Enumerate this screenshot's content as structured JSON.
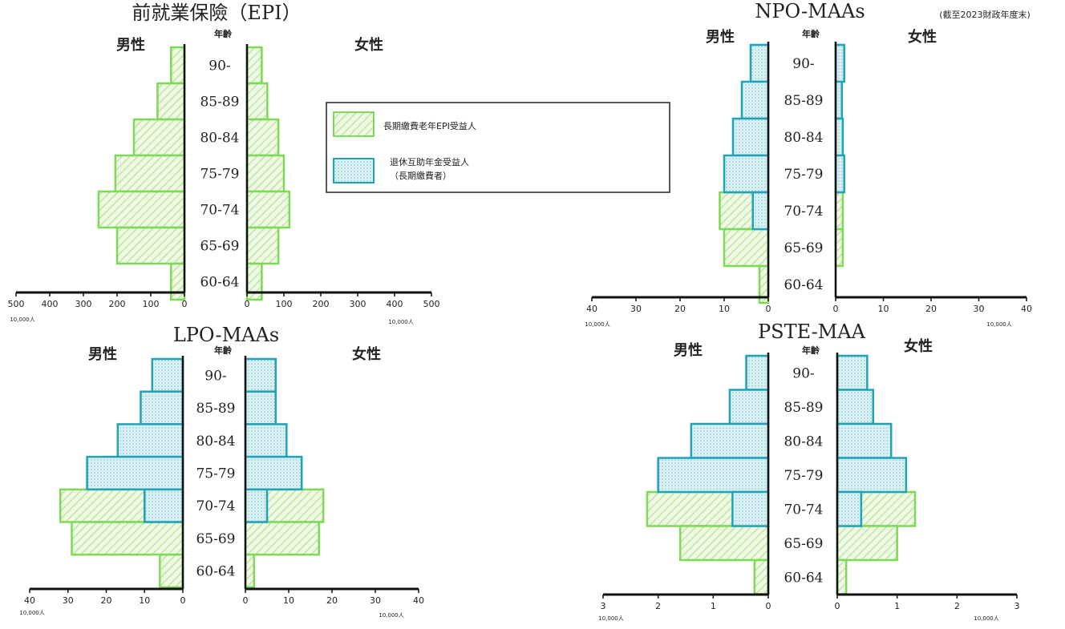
{
  "note": "(截至2023財政年度末)",
  "legend": {
    "epi": {
      "label": "長期繳費老年EPI受益人"
    },
    "mutual": {
      "label_line1": "退休互助年金受益人",
      "label_line2": "（長期繳費者）"
    }
  },
  "colors": {
    "epi_stroke": "#7ed957",
    "epi_fill": "#eef8e2",
    "epi_hatch": "#a9dc8c",
    "mutual_stroke": "#1fa3b8",
    "mutual_fill": "#d8eff3",
    "mutual_dot": "#9fd0da",
    "axis": "#111111"
  },
  "chart_data": [
    {
      "type": "bar",
      "subtype": "population-pyramid",
      "title": "前就業保險（EPI）",
      "male_label": "男性",
      "female_label": "女性",
      "age_header": "年齡",
      "categories": [
        "90-",
        "85-89",
        "80-84",
        "75-79",
        "70-74",
        "65-69",
        "60-64"
      ],
      "male_ticks": [
        "500",
        "400",
        "300",
        "200",
        "100",
        "0"
      ],
      "female_ticks": [
        "0",
        "100",
        "200",
        "300",
        "400",
        "500"
      ],
      "xlim": [
        0,
        500
      ],
      "unit": "10,000人",
      "series": [
        {
          "name": "長期繳費老年EPI受益人",
          "key": "epi",
          "male": [
            40,
            80,
            150,
            205,
            255,
            200,
            40
          ],
          "female": [
            40,
            55,
            85,
            100,
            115,
            85,
            40
          ]
        }
      ]
    },
    {
      "type": "bar",
      "subtype": "population-pyramid",
      "title": "NPO-MAAs",
      "male_label": "男性",
      "female_label": "女性",
      "age_header": "年齡",
      "categories": [
        "90-",
        "85-89",
        "80-84",
        "75-79",
        "70-74",
        "65-69",
        "60-64"
      ],
      "male_ticks": [
        "40",
        "30",
        "20",
        "10",
        "0"
      ],
      "female_ticks": [
        "0",
        "10",
        "20",
        "30",
        "40"
      ],
      "xlim": [
        0,
        40
      ],
      "unit": "10,000人",
      "series": [
        {
          "name": "長期繳費老年EPI受益人",
          "key": "epi",
          "male": [
            0,
            0,
            0,
            0,
            11,
            10,
            2
          ],
          "female": [
            0,
            0,
            0,
            0,
            1.5,
            1.5,
            0
          ]
        },
        {
          "name": "退休互助年金受益人（長期繳費者）",
          "key": "mutual",
          "male": [
            4,
            6,
            8,
            10,
            3.5,
            0,
            0
          ],
          "female": [
            1.8,
            1.3,
            1.5,
            1.8,
            0,
            0,
            0
          ]
        }
      ]
    },
    {
      "type": "bar",
      "subtype": "population-pyramid",
      "title": "LPO-MAAs",
      "male_label": "男性",
      "female_label": "女性",
      "age_header": "年齡",
      "categories": [
        "90-",
        "85-89",
        "80-84",
        "75-79",
        "70-74",
        "65-69",
        "60-64"
      ],
      "male_ticks": [
        "40",
        "30",
        "20",
        "10",
        "0"
      ],
      "female_ticks": [
        "0",
        "10",
        "20",
        "30",
        "40"
      ],
      "xlim": [
        0,
        40
      ],
      "unit": "10,000人",
      "series": [
        {
          "name": "長期繳費老年EPI受益人",
          "key": "epi",
          "male": [
            0,
            0,
            0,
            21,
            32,
            29,
            6
          ],
          "female": [
            0,
            0,
            0,
            0,
            18,
            17,
            2
          ]
        },
        {
          "name": "退休互助年金受益人（長期繳費者）",
          "key": "mutual",
          "male": [
            8,
            11,
            17,
            25,
            10,
            0,
            0
          ],
          "female": [
            7,
            7,
            9.5,
            13,
            5,
            0,
            0
          ]
        }
      ]
    },
    {
      "type": "bar",
      "subtype": "population-pyramid",
      "title": "PSTE-MAA",
      "male_label": "男性",
      "female_label": "女性",
      "age_header": "年齡",
      "categories": [
        "90-",
        "85-89",
        "80-84",
        "75-79",
        "70-74",
        "65-69",
        "60-64"
      ],
      "male_ticks": [
        "3",
        "2",
        "1",
        "0"
      ],
      "female_ticks": [
        "0",
        "1",
        "2",
        "3"
      ],
      "xlim": [
        0,
        3
      ],
      "unit": "10,000人",
      "series": [
        {
          "name": "長期繳費老年EPI受益人",
          "key": "epi",
          "male": [
            0,
            0,
            0,
            0,
            2.2,
            1.6,
            0.25
          ],
          "female": [
            0,
            0,
            0,
            0,
            1.3,
            1.0,
            0.15
          ]
        },
        {
          "name": "退休互助年金受益人（長期繳費者）",
          "key": "mutual",
          "male": [
            0.4,
            0.7,
            1.4,
            2.0,
            0.65,
            0,
            0
          ],
          "female": [
            0.5,
            0.6,
            0.9,
            1.15,
            0.4,
            0,
            0
          ]
        }
      ]
    }
  ]
}
